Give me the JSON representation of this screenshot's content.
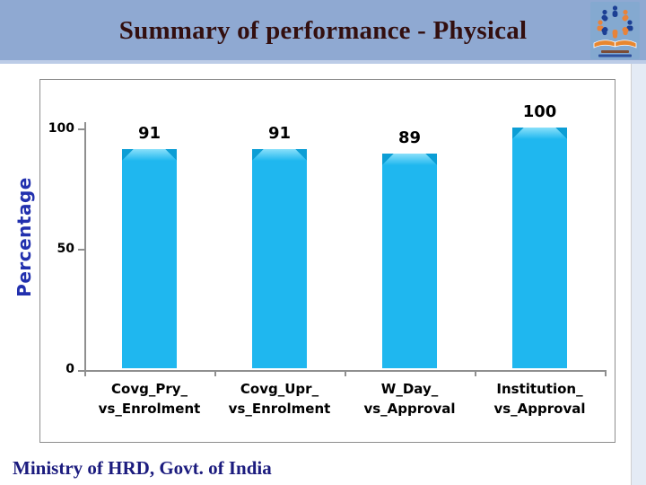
{
  "header": {
    "title": "Summary of performance - Physical",
    "logo_icon": "education-ministry-emblem-icon"
  },
  "footer": {
    "text": "Ministry of HRD, Govt. of India"
  },
  "chart_data": {
    "type": "bar",
    "title": "",
    "categories": [
      "Covg_Pry_ vs_Enrolment",
      "Covg_Upr_ vs_Enrolment",
      "W_Day_ vs_Approval",
      "Institution_ vs_Approval"
    ],
    "category_lines": [
      [
        "Covg_Pry_",
        "vs_Enrolment"
      ],
      [
        "Covg_Upr_",
        "vs_Enrolment"
      ],
      [
        "W_Day_",
        "vs_Approval"
      ],
      [
        "Institution_",
        "vs_Approval"
      ]
    ],
    "values": [
      91,
      91,
      89,
      100
    ],
    "data_labels": [
      "91",
      "91",
      "89",
      "100"
    ],
    "ylabel": "Percentage",
    "xlabel": "",
    "yticks": [
      "100",
      "50",
      "0"
    ],
    "ylim": [
      0,
      100
    ],
    "grid": false,
    "legend": false,
    "bar_color": "#1FB7EF"
  },
  "colors": {
    "header_bg": "#8FA9D2",
    "title_text": "#330F0F",
    "footer_text": "#1B1B7E",
    "ylabel_text": "#2230AE",
    "bar_fill": "#1FB7EF",
    "chart_border": "#8E8E8E"
  }
}
